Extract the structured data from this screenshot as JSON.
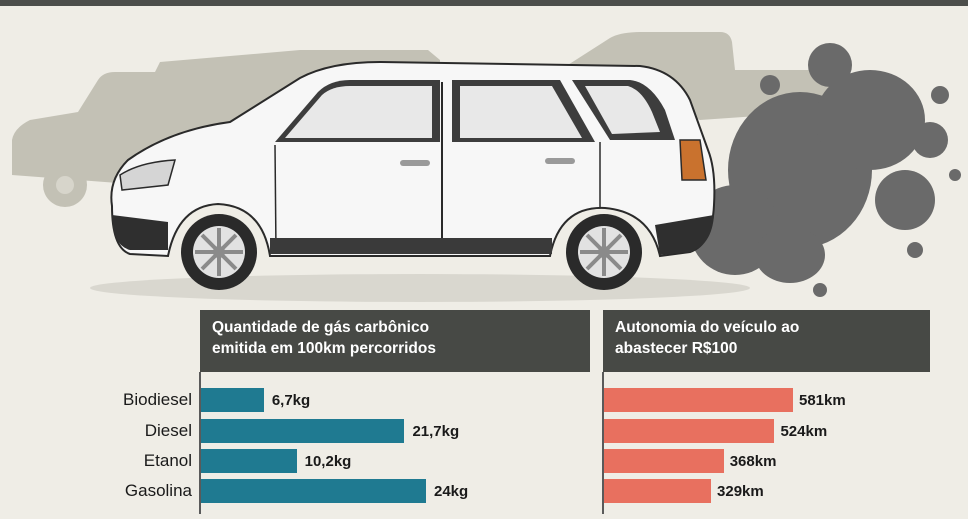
{
  "colors": {
    "emission_bar": "#1f7a91",
    "autonomy_bar": "#e8705f",
    "header_bg": "#474945",
    "background": "#efede6"
  },
  "chart_data": [
    {
      "type": "bar",
      "orientation": "horizontal",
      "title": "Quantidade de gás carbônico emitida em 100km percorridos",
      "title_lines": [
        "Quantidade de gás carbônico",
        "emitida em 100km percorridos"
      ],
      "categories": [
        "Biodiesel",
        "Diesel",
        "Etanol",
        "Gasolina"
      ],
      "values": [
        6.7,
        21.7,
        10.2,
        24
      ],
      "value_labels": [
        "6,7kg",
        "21,7kg",
        "10,2kg",
        "24kg"
      ],
      "unit": "kg"
    },
    {
      "type": "bar",
      "orientation": "horizontal",
      "title": "Autonomia do veículo ao abastecer R$100",
      "title_lines": [
        "Autonomia do veículo ao",
        "abastecer R$100"
      ],
      "categories": [
        "Biodiesel",
        "Diesel",
        "Etanol",
        "Gasolina"
      ],
      "values": [
        581,
        524,
        368,
        329
      ],
      "value_labels": [
        "581km",
        "524km",
        "368km",
        "329km"
      ],
      "unit": "km"
    }
  ]
}
